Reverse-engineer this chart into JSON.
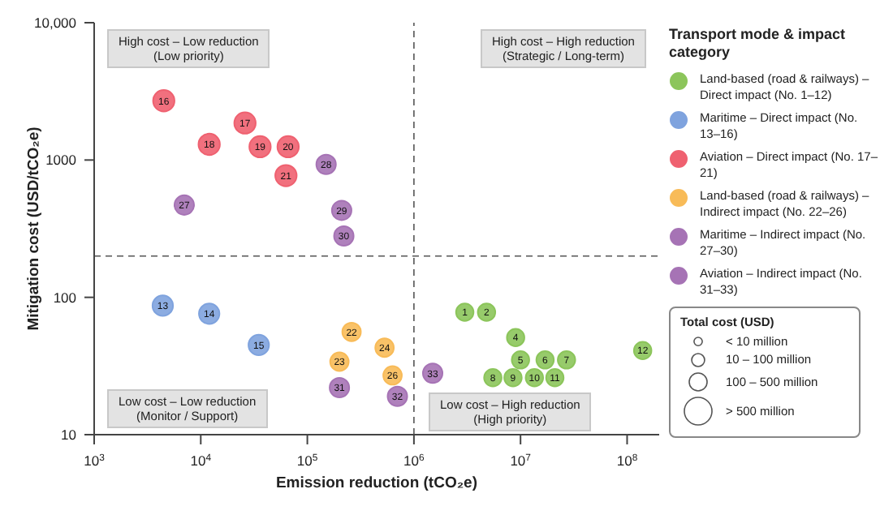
{
  "chart_data": {
    "type": "bubble",
    "xlabel": "Emission reduction (tCO₂e)",
    "ylabel": "Mitigation cost (USD/tCO₂e)",
    "legend_title": "Transport mode & impact category",
    "log": "xy",
    "grid": false,
    "legend": "right",
    "marker": "circle",
    "xlim": [
      1000,
      200000000
    ],
    "xticks": [
      {
        "value": 1000,
        "label": "10$^{3}$"
      },
      {
        "value": 10000,
        "label": "10$^{4}$"
      },
      {
        "value": 100000,
        "label": "10$^{5}$"
      },
      {
        "value": 1000000,
        "label": "10$^{6}$"
      },
      {
        "value": 10000000,
        "label": "10$^{7}$"
      },
      {
        "value": 100000000,
        "label": "10$^{8}$"
      }
    ],
    "ylim": [
      10,
      10000
    ],
    "yticks": [
      10,
      100,
      1000,
      {
        "value": 10000,
        "label": "10,000"
      }
    ],
    "size_legend": [
      {
        "value": 0.09,
        "label": "< 10 million"
      },
      {
        "value": 0.22,
        "label": "10 – 100 million"
      },
      {
        "value": 0.42,
        "label": "100 – 500 million"
      },
      {
        "value": 1,
        "label": "> 500 million"
      }
    ],
    "series": [
      {
        "name": "Land-based (road & railways) – Direct impact (No. 1–12)",
        "color": "#8cc55b",
        "x": [
          3000000,
          4800000,
          9000000,
          10000000,
          17000000,
          27000000,
          5500000,
          8500000,
          13500000,
          21000000,
          140000000
        ],
        "values": [
          78,
          78,
          51,
          35,
          35,
          35,
          26,
          26,
          26,
          26,
          41
        ],
        "sizes": [
          0.4,
          0.4,
          0.4,
          0.4,
          0.4,
          0.4,
          0.4,
          0.4,
          0.4,
          0.4,
          0.4
        ]
      },
      {
        "name": "Maritime – Direct impact (No. 13–16)",
        "color": "#7fa3de",
        "x": [
          4400,
          12000,
          35000
        ],
        "values": [
          87,
          76,
          45
        ],
        "sizes": [
          0.55,
          0.55,
          0.55
        ]
      },
      {
        "name": "Aviation – Direct impact (No. 17–21)",
        "color": "#ef6170",
        "x": [
          4500,
          26000,
          12000,
          36000,
          66000,
          63000
        ],
        "values": [
          2700,
          1860,
          1300,
          1250,
          1250,
          770
        ],
        "sizes": [
          0.6,
          0.6,
          0.6,
          0.6,
          0.6,
          0.6
        ]
      },
      {
        "name": "Land-based (road & railways) – Indirect impact (No. 22–26)",
        "color": "#f8bb58",
        "x": [
          260000,
          200000,
          530000,
          630000
        ],
        "values": [
          56,
          34,
          43,
          27
        ],
        "sizes": [
          0.45,
          0.45,
          0.45,
          0.45
        ]
      },
      {
        "name": "Maritime – Indirect impact (No. 27–30)",
        "color": "#a673b5",
        "x": [
          7000,
          150000,
          210000,
          220000
        ],
        "values": [
          470,
          930,
          430,
          280
        ],
        "sizes": [
          0.5,
          0.5,
          0.5,
          0.5
        ]
      },
      {
        "name": "Aviation – Indirect impact (No. 31–33)",
        "color": "#a673b5",
        "x": [
          200000,
          700000,
          1500000
        ],
        "values": [
          22,
          19,
          28
        ],
        "sizes": [
          0.5,
          0.5,
          0.5
        ]
      }
    ],
    "ref_lines": [
      {
        "axis": "x",
        "value": 1000000,
        "color": "#555555",
        "line_style": "dashed"
      },
      {
        "axis": "y",
        "value": 200,
        "color": "#555555",
        "line_style": "dashed"
      }
    ],
    "annotations": [
      "High cost – Low reduction\n(Low priority)",
      "High cost – High reduction\n(Strategic / Long-term)",
      "Low cost – Low reduction\n(Monitor / Support)",
      "Low cost – High reduction\n(High priority)",
      "Total cost (USD)",
      {
        "text": "1",
        "x": 3000000,
        "y": 78
      },
      {
        "text": "2",
        "x": 4800000,
        "y": 78
      },
      {
        "text": "4",
        "x": 9000000,
        "y": 51
      },
      {
        "text": "5",
        "x": 10000000,
        "y": 35
      },
      {
        "text": "6",
        "x": 17000000,
        "y": 35
      },
      {
        "text": "7",
        "x": 27000000,
        "y": 35
      },
      {
        "text": "8",
        "x": 5500000,
        "y": 26
      },
      {
        "text": "9",
        "x": 8500000,
        "y": 26
      },
      {
        "text": "10",
        "x": 13500000,
        "y": 26
      },
      {
        "text": "11",
        "x": 21000000,
        "y": 26
      },
      {
        "text": "12",
        "x": 140000000,
        "y": 41
      },
      {
        "text": "13",
        "x": 4400,
        "y": 87
      },
      {
        "text": "14",
        "x": 12000,
        "y": 76
      },
      {
        "text": "15",
        "x": 35000,
        "y": 45
      },
      {
        "text": "16",
        "x": 4500,
        "y": 2700
      },
      {
        "text": "17",
        "x": 26000,
        "y": 1860
      },
      {
        "text": "18",
        "x": 12000,
        "y": 1300
      },
      {
        "text": "19",
        "x": 36000,
        "y": 1250
      },
      {
        "text": "20",
        "x": 66000,
        "y": 1250
      },
      {
        "text": "21",
        "x": 63000,
        "y": 770
      },
      {
        "text": "22",
        "x": 260000,
        "y": 56
      },
      {
        "text": "23",
        "x": 200000,
        "y": 34
      },
      {
        "text": "24",
        "x": 530000,
        "y": 43
      },
      {
        "text": "26",
        "x": 630000,
        "y": 27
      },
      {
        "text": "27",
        "x": 7000,
        "y": 470
      },
      {
        "text": "28",
        "x": 150000,
        "y": 930
      },
      {
        "text": "29",
        "x": 210000,
        "y": 430
      },
      {
        "text": "30",
        "x": 220000,
        "y": 280
      },
      {
        "text": "31",
        "x": 200000,
        "y": 22
      },
      {
        "text": "32",
        "x": 700000,
        "y": 19
      },
      {
        "text": "33",
        "x": 1500000,
        "y": 28
      }
    ]
  }
}
